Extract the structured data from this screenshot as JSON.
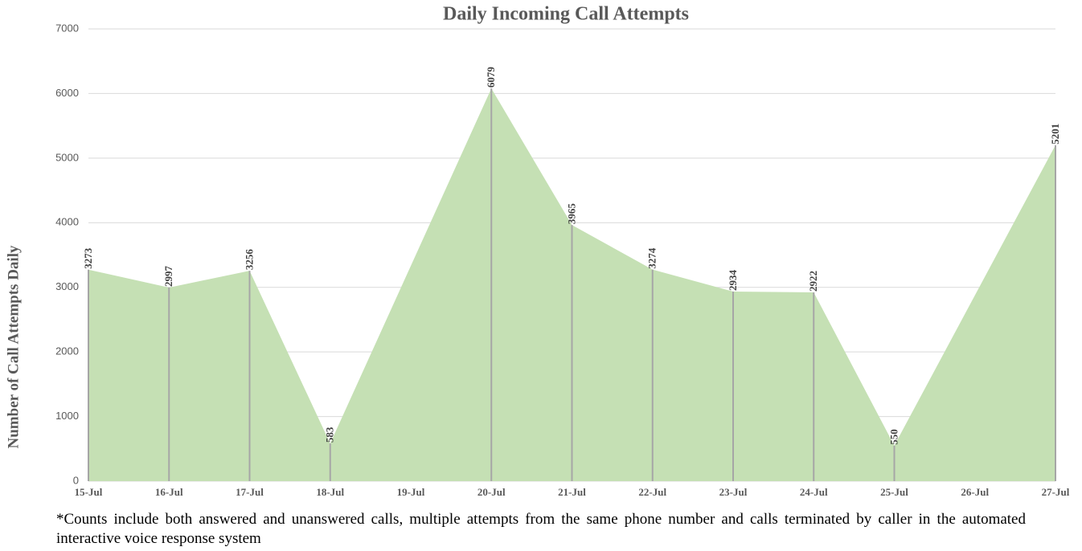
{
  "chart_data": {
    "type": "area",
    "title": "Daily Incoming Call Attempts",
    "y_label": "Number of Call Attempts Daily",
    "note": "*Counts include both answered and unanswered calls, multiple attempts from the same phone number and calls terminated by caller in the automated interactive voice response system",
    "categories": [
      "15-Jul",
      "16-Jul",
      "17-Jul",
      "18-Jul",
      "19-Jul",
      "20-Jul",
      "21-Jul",
      "22-Jul",
      "23-Jul",
      "24-Jul",
      "25-Jul",
      "26-Jul",
      "27-Jul"
    ],
    "values": [
      3273,
      2997,
      3256,
      583,
      null,
      6079,
      3965,
      3274,
      2934,
      2922,
      550,
      null,
      5201
    ],
    "color": "#c5e0b4",
    "drop_line_color": "#a6a6a6",
    "span_gaps": true,
    "ylim": [
      0,
      7000
    ],
    "yticks": [
      0,
      1000,
      2000,
      3000,
      4000,
      5000,
      6000,
      7000
    ],
    "grid": true
  }
}
